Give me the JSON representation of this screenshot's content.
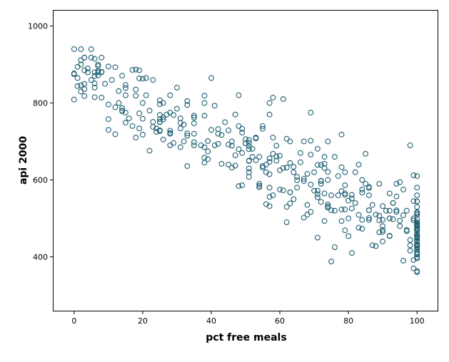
{
  "colors": {
    "marker": "#1f5f73",
    "frame": "#000000",
    "background": "#ffffff"
  },
  "chart_data": {
    "type": "scatter",
    "title": "",
    "xlabel": "pct free meals",
    "ylabel": "api 2000",
    "xlim": [
      -6,
      106
    ],
    "ylim": [
      260,
      1040
    ],
    "xticks": [
      0,
      20,
      40,
      60,
      80,
      100
    ],
    "yticks": [
      400,
      600,
      800,
      1000
    ],
    "grid": false,
    "legend": "none",
    "marker": "open-circle",
    "generation": {
      "n": 400,
      "intercept": 885,
      "slope": -4.2,
      "noise_sd": 52,
      "x_min": 0,
      "x_max": 100,
      "seed": 20000
    },
    "points": [
      [
        0,
        940
      ],
      [
        1,
        865
      ],
      [
        2,
        900
      ],
      [
        2,
        830
      ],
      [
        3,
        885
      ],
      [
        3,
        850
      ],
      [
        4,
        880
      ],
      [
        5,
        918
      ],
      [
        5,
        860
      ],
      [
        6,
        915
      ],
      [
        6,
        840
      ],
      [
        7,
        900
      ],
      [
        8,
        880
      ],
      [
        9,
        850
      ],
      [
        10,
        895
      ],
      [
        11,
        860
      ],
      [
        12,
        893
      ],
      [
        13,
        800
      ],
      [
        14,
        780
      ],
      [
        15,
        820
      ],
      [
        16,
        760
      ],
      [
        17,
        740
      ],
      [
        18,
        710
      ],
      [
        19,
        885
      ],
      [
        20,
        800
      ],
      [
        21,
        820
      ],
      [
        22,
        780
      ],
      [
        23,
        860
      ],
      [
        25,
        750
      ],
      [
        26,
        800
      ],
      [
        27,
        770
      ],
      [
        28,
        690
      ],
      [
        30,
        840
      ],
      [
        31,
        760
      ],
      [
        32,
        700
      ],
      [
        33,
        805
      ],
      [
        35,
        720
      ],
      [
        37,
        690
      ],
      [
        38,
        800
      ],
      [
        40,
        865
      ],
      [
        40,
        730
      ],
      [
        41,
        690
      ],
      [
        42,
        720
      ],
      [
        44,
        750
      ],
      [
        45,
        640
      ],
      [
        46,
        700
      ],
      [
        47,
        770
      ],
      [
        48,
        820
      ],
      [
        48,
        680
      ],
      [
        50,
        695
      ],
      [
        51,
        630
      ],
      [
        52,
        660
      ],
      [
        53,
        710
      ],
      [
        54,
        585
      ],
      [
        55,
        740
      ],
      [
        56,
        620
      ],
      [
        57,
        800
      ],
      [
        58,
        710
      ],
      [
        59,
        650
      ],
      [
        60,
        625
      ],
      [
        61,
        810
      ],
      [
        62,
        530
      ],
      [
        62,
        490
      ],
      [
        63,
        700
      ],
      [
        64,
        620
      ],
      [
        65,
        580
      ],
      [
        66,
        670
      ],
      [
        67,
        700
      ],
      [
        68,
        510
      ],
      [
        69,
        775
      ],
      [
        70,
        620
      ],
      [
        71,
        450
      ],
      [
        72,
        590
      ],
      [
        73,
        660
      ],
      [
        74,
        700
      ],
      [
        75,
        388
      ],
      [
        75,
        560
      ],
      [
        76,
        520
      ],
      [
        77,
        560
      ],
      [
        78,
        718
      ],
      [
        79,
        620
      ],
      [
        80,
        500
      ],
      [
        81,
        410
      ],
      [
        82,
        540
      ],
      [
        83,
        640
      ],
      [
        84,
        600
      ],
      [
        85,
        668
      ],
      [
        86,
        560
      ],
      [
        87,
        430
      ],
      [
        88,
        510
      ],
      [
        89,
        590
      ],
      [
        90,
        470
      ],
      [
        90,
        440
      ],
      [
        91,
        520
      ],
      [
        92,
        500
      ],
      [
        93,
        540
      ],
      [
        94,
        590
      ],
      [
        95,
        480
      ],
      [
        96,
        390
      ],
      [
        97,
        520
      ],
      [
        97,
        470
      ],
      [
        98,
        690
      ],
      [
        98,
        430
      ],
      [
        99,
        370
      ],
      [
        99,
        500
      ],
      [
        99,
        545
      ],
      [
        100,
        610
      ],
      [
        100,
        580
      ],
      [
        100,
        560
      ],
      [
        100,
        530
      ],
      [
        100,
        490
      ],
      [
        100,
        470
      ],
      [
        100,
        450
      ],
      [
        100,
        430
      ],
      [
        100,
        410
      ]
    ]
  }
}
